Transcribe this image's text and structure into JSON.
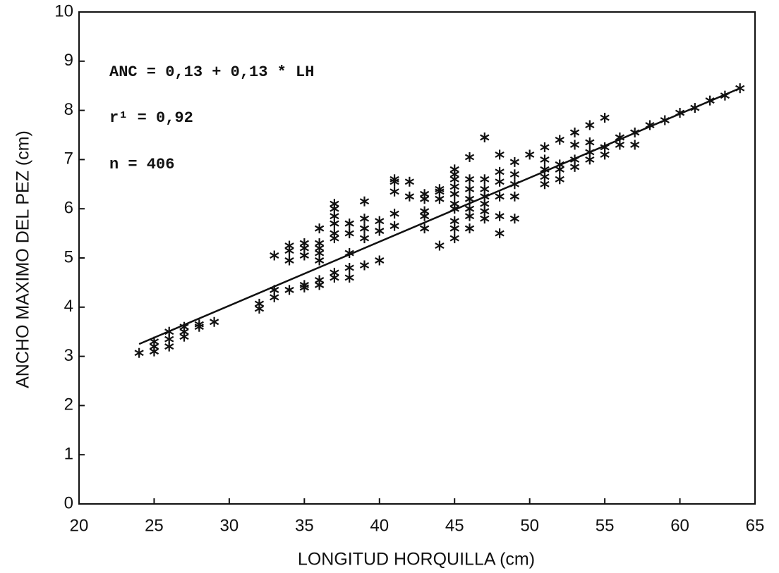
{
  "chart_data": {
    "type": "scatter",
    "x_label": "LONGITUD HORQUILLA (cm)",
    "y_label": "ANCHO MAXIMO DEL PEZ (cm)",
    "annotations": [
      "ANC = 0,13 + 0,13 * LH",
      "r¹ = 0,92",
      "n = 406"
    ],
    "xlim": [
      20,
      65
    ],
    "xticks": [
      20,
      25,
      30,
      35,
      40,
      45,
      50,
      55,
      60,
      65
    ],
    "ylim": [
      0,
      10
    ],
    "yticks": [
      0,
      1,
      2,
      3,
      4,
      5,
      6,
      7,
      8,
      9,
      10
    ],
    "color": "#111111",
    "points": {
      "x": [
        24,
        25,
        25,
        25,
        26,
        26,
        26,
        27,
        27,
        27,
        28,
        28,
        29,
        32,
        32,
        33,
        33,
        33,
        34,
        34,
        34,
        34,
        35,
        35,
        35,
        35,
        35,
        36,
        36,
        36,
        36,
        36,
        36,
        36,
        37,
        37,
        37,
        37,
        37,
        37,
        37,
        37,
        38,
        38,
        38,
        38,
        38,
        39,
        39,
        39,
        39,
        39,
        40,
        40,
        40,
        41,
        41,
        41,
        41,
        41,
        42,
        42,
        43,
        43,
        43,
        43,
        43,
        44,
        44,
        44,
        44,
        45,
        45,
        45,
        45,
        45,
        45,
        45,
        45,
        45,
        45,
        46,
        46,
        46,
        46,
        46,
        46,
        46,
        47,
        47,
        47,
        47,
        47,
        47,
        47,
        48,
        48,
        48,
        48,
        48,
        48,
        49,
        49,
        49,
        49,
        49,
        50,
        51,
        51,
        51,
        51,
        51,
        52,
        52,
        52,
        52,
        53,
        53,
        53,
        53,
        54,
        54,
        54,
        54,
        55,
        55,
        55,
        56,
        56,
        57,
        57,
        58,
        59,
        60,
        61,
        62,
        63,
        64
      ],
      "y": [
        3.07,
        3.1,
        3.2,
        3.3,
        3.2,
        3.35,
        3.5,
        3.4,
        3.5,
        3.6,
        3.6,
        3.65,
        3.7,
        3.97,
        4.07,
        4.2,
        4.35,
        5.05,
        4.35,
        4.95,
        5.15,
        5.25,
        4.4,
        4.45,
        5.05,
        5.2,
        5.3,
        4.45,
        4.55,
        4.95,
        5.1,
        5.2,
        5.3,
        5.6,
        4.6,
        4.7,
        5.4,
        5.5,
        5.7,
        5.85,
        6.0,
        6.1,
        4.6,
        4.8,
        5.1,
        5.5,
        5.7,
        4.85,
        5.4,
        5.6,
        5.8,
        6.15,
        4.95,
        5.55,
        5.75,
        5.65,
        5.9,
        6.35,
        6.55,
        6.6,
        6.25,
        6.55,
        5.6,
        5.85,
        5.95,
        6.2,
        6.3,
        5.25,
        6.2,
        6.35,
        6.4,
        5.4,
        5.6,
        5.75,
        6.0,
        6.1,
        6.3,
        6.45,
        6.6,
        6.7,
        6.8,
        5.6,
        5.85,
        6.0,
        6.2,
        6.4,
        6.6,
        7.05,
        5.8,
        5.95,
        6.1,
        6.25,
        6.4,
        6.6,
        7.45,
        5.5,
        5.85,
        6.25,
        6.55,
        6.75,
        7.1,
        5.8,
        6.25,
        6.5,
        6.7,
        6.95,
        7.1,
        6.5,
        6.65,
        6.8,
        7.0,
        7.25,
        6.6,
        6.8,
        6.9,
        7.4,
        6.85,
        7.0,
        7.3,
        7.55,
        7.0,
        7.15,
        7.35,
        7.7,
        7.1,
        7.25,
        7.85,
        7.3,
        7.45,
        7.3,
        7.55,
        7.7,
        7.8,
        7.95,
        8.05,
        8.2,
        8.3,
        8.45
      ]
    },
    "fit_line": {
      "x": [
        24,
        64
      ],
      "y": [
        3.25,
        8.45
      ]
    }
  }
}
